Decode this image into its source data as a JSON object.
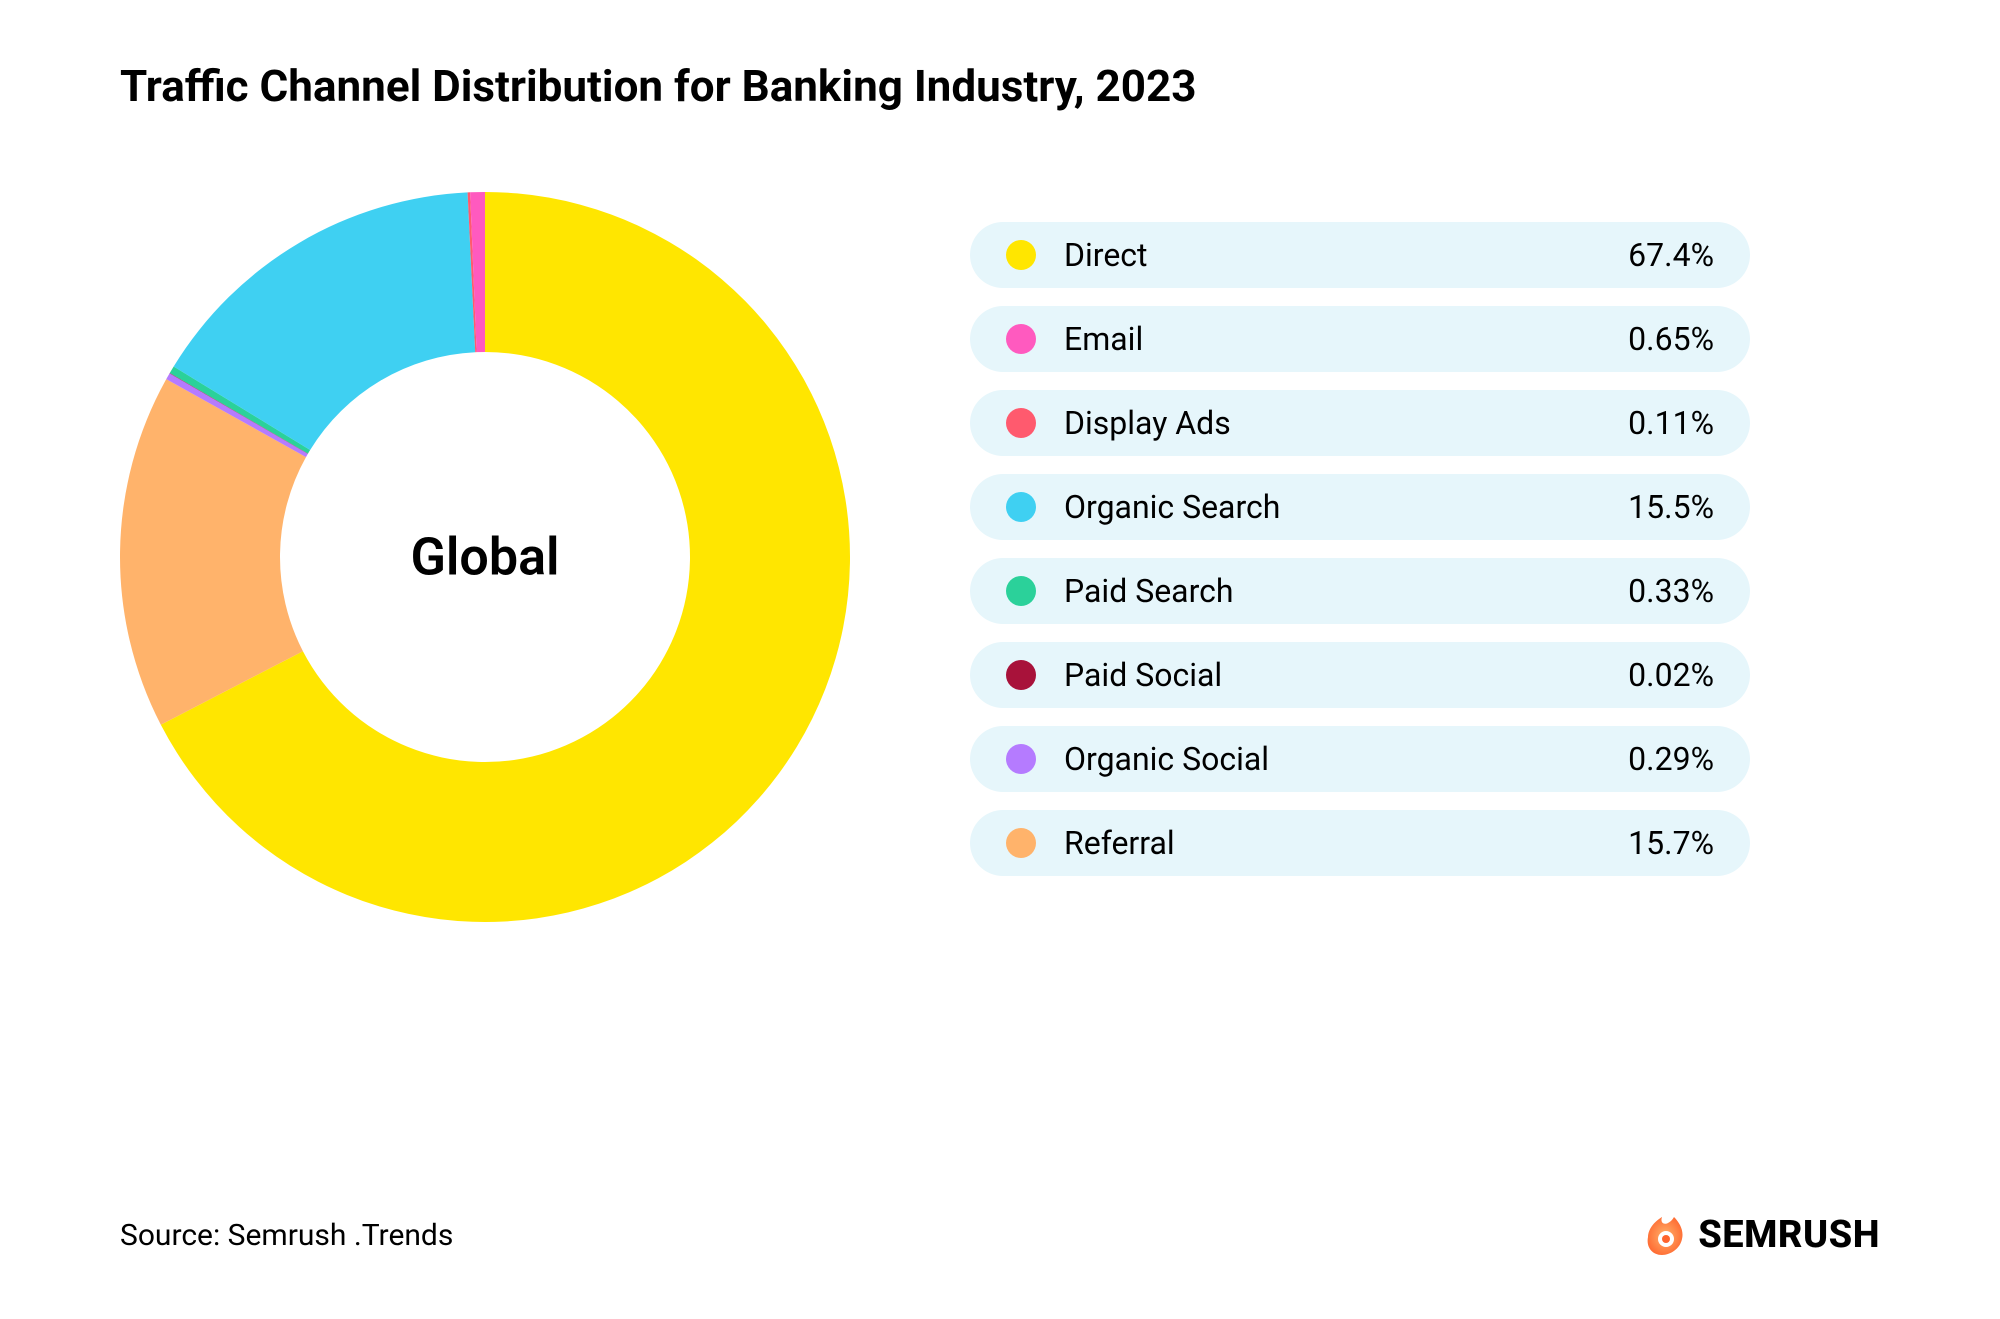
{
  "title": "Traffic Channel Distribution for Banking Industry, 2023",
  "source": "Source: Semrush .Trends",
  "brand": "SEMRUSH",
  "chart": {
    "type": "donut",
    "center_label": "Global",
    "center_label_fontsize": 52,
    "title_fontsize": 44,
    "background_color": "#ffffff",
    "outer_radius": 365,
    "inner_radius": 205,
    "start_angle_deg": -90,
    "direction": "clockwise",
    "segments": [
      {
        "label": "Direct",
        "value": 67.4,
        "value_display": "67.4%",
        "color": "#ffe600"
      },
      {
        "label": "Referral",
        "value": 15.7,
        "value_display": "15.7%",
        "color": "#ffb36b"
      },
      {
        "label": "Organic Social",
        "value": 0.29,
        "value_display": "0.29%",
        "color": "#b57bff"
      },
      {
        "label": "Paid Social",
        "value": 0.02,
        "value_display": "0.02%",
        "color": "#a8123a"
      },
      {
        "label": "Paid Search",
        "value": 0.33,
        "value_display": "0.33%",
        "color": "#2bd19a"
      },
      {
        "label": "Organic Search",
        "value": 15.5,
        "value_display": "15.5%",
        "color": "#3fd0f2"
      },
      {
        "label": "Display Ads",
        "value": 0.11,
        "value_display": "0.11%",
        "color": "#ff5a6e"
      },
      {
        "label": "Email",
        "value": 0.65,
        "value_display": "0.65%",
        "color": "#ff5abf"
      }
    ],
    "legend_order": [
      0,
      7,
      6,
      5,
      4,
      3,
      2,
      1
    ],
    "legend_row_bg": "#e6f6fb",
    "legend_label_fontsize": 32,
    "legend_value_fontsize": 32,
    "brand_icon_color": "#ff642d",
    "brand_icon_accent": "#ffb26b"
  }
}
